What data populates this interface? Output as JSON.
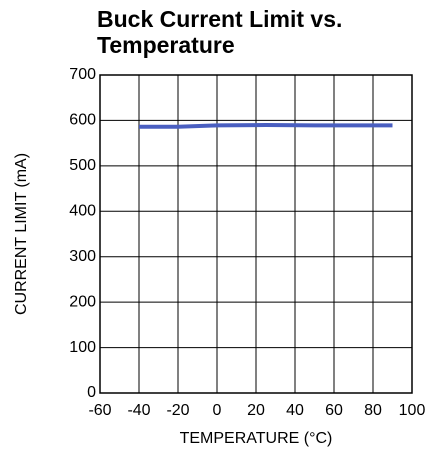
{
  "chart_data": {
    "type": "line",
    "title": "Buck Current Limit vs. Temperature",
    "x_label": "TEMPERATURE (°C)",
    "y_label": "CURRENT LIMIT (mA)",
    "x": [
      -40,
      -20,
      0,
      25,
      50,
      90
    ],
    "series": [
      {
        "name": "Current Limit",
        "color": "#4a5fc1",
        "values": [
          586,
          586,
          589,
          590,
          589,
          589
        ]
      }
    ],
    "xlim": [
      -60,
      100
    ],
    "xticks": [
      -60,
      -40,
      -20,
      0,
      20,
      40,
      60,
      80,
      100
    ],
    "ylim": [
      0,
      700
    ],
    "yticks": [
      0,
      100,
      200,
      300,
      400,
      500,
      600,
      700
    ],
    "grid": true
  }
}
